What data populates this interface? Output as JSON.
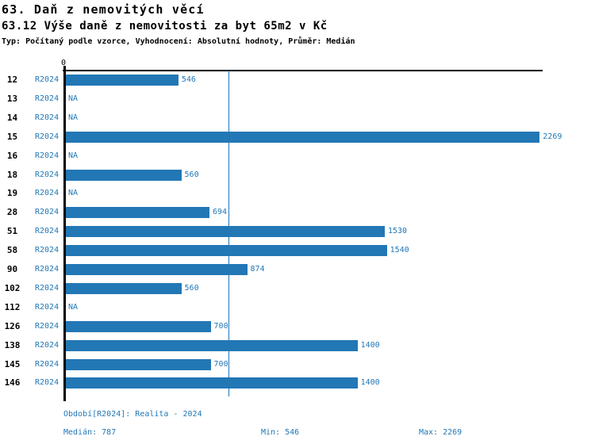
{
  "header": {
    "title1": "63. Daň z nemovitých věcí",
    "title2": "63.12 Výše daně z nemovitosti za byt 65m2 v Kč",
    "subtitle": "Typ: Počítaný podle vzorce, Vyhodnocení: Absolutní hodnoty, Průměr: Medián"
  },
  "colors": {
    "bar_blue": "#2277b5",
    "axis_black": "#000000"
  },
  "chart_data": {
    "type": "bar",
    "orientation": "horizontal",
    "title": "63.12 Výše daně z nemovitosti za byt 65m2 v Kč",
    "categories": [
      "12",
      "13",
      "14",
      "15",
      "16",
      "18",
      "19",
      "28",
      "51",
      "58",
      "90",
      "102",
      "112",
      "126",
      "138",
      "145",
      "146"
    ],
    "series": [
      {
        "name": "R2024",
        "values": [
          546,
          null,
          null,
          2269,
          null,
          560,
          null,
          694,
          1530,
          1540,
          874,
          560,
          null,
          700,
          1400,
          700,
          1400
        ]
      }
    ],
    "na_label": "NA",
    "xlim": [
      0,
      2283
    ],
    "x_tick_labels": [
      "0"
    ],
    "median_value": 787,
    "grid": false,
    "legend": false,
    "value_labels": true
  },
  "footer": {
    "period": "Období[R2024]: Realita - 2024",
    "median": "Medián: 787",
    "min": "Min: 546",
    "max": "Max: 2269"
  }
}
